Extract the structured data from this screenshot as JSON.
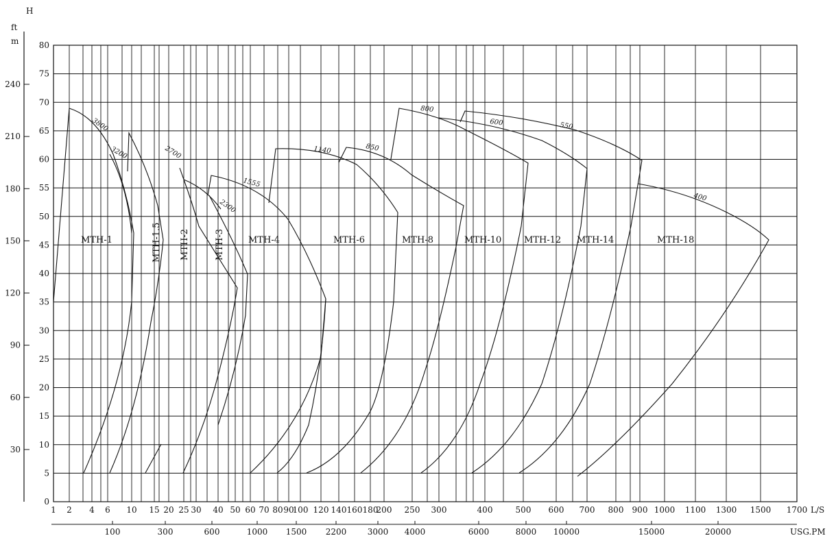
{
  "chart_data": {
    "type": "line",
    "axis_label_h": "H",
    "axis_label_ft": "ft",
    "axis_label_m": "m",
    "x_unit_ls": "L/S",
    "x_unit_usgpm": "USG.PM",
    "y_m_ticks": [
      "0",
      "5",
      "10",
      "15",
      "20",
      "25",
      "30",
      "35",
      "40",
      "45",
      "50",
      "55",
      "60",
      "65",
      "70",
      "75",
      "80"
    ],
    "y_m_range": [
      0,
      80
    ],
    "y_ft_ticks": [
      "30",
      "60",
      "90",
      "120",
      "150",
      "180",
      "210",
      "240"
    ],
    "x_ls_ticks": [
      "1",
      "2",
      "4",
      "6",
      "10",
      "15",
      "20",
      "25",
      "30",
      "40",
      "50",
      "60",
      "70",
      "80",
      "90",
      "100",
      "120",
      "140",
      "160",
      "180",
      "200",
      "250",
      "300",
      "400",
      "500",
      "600",
      "700",
      "800",
      "900",
      "1000",
      "1100",
      "1300",
      "1500",
      "1700"
    ],
    "x_usgpm_ticks": [
      "100",
      "300",
      "600",
      "1000",
      "1500",
      "2200",
      "3000",
      "4000",
      "6000",
      "8000",
      "10000",
      "15000",
      "20000"
    ],
    "models": [
      "MTH-1",
      "MTH-1.5",
      "MTH-2",
      "MTH-3",
      "MTH-4",
      "MTH-6",
      "MTH-8",
      "MTH-10",
      "MTH-12",
      "MTH-14",
      "MTH-18"
    ],
    "speed_labels": [
      "3800",
      "3200",
      "2700",
      "2300",
      "1555",
      "1140",
      "850",
      "800",
      "600",
      "550",
      "400"
    ],
    "grid": true
  }
}
